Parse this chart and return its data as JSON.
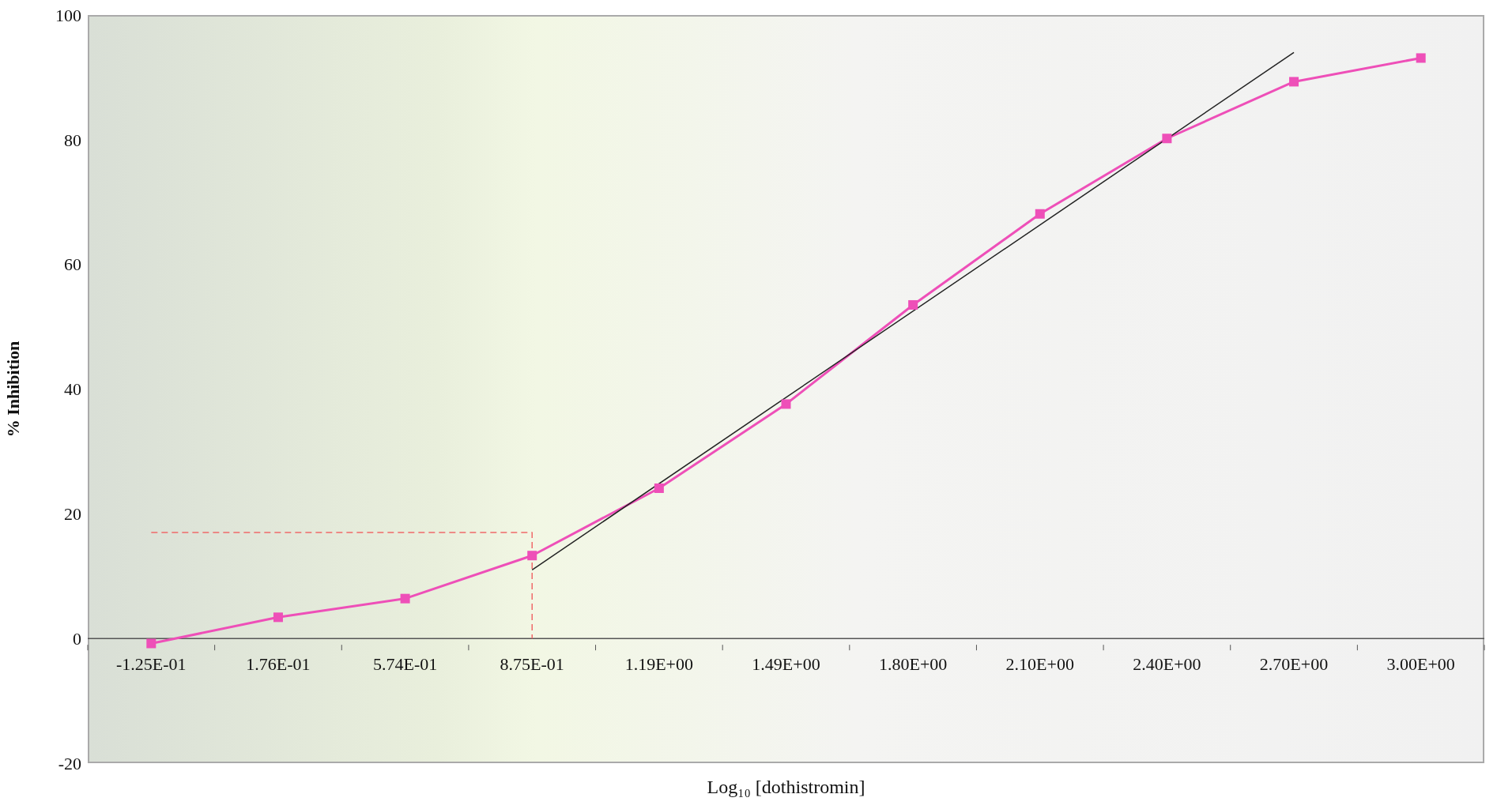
{
  "chart_data": {
    "type": "line",
    "xlabel": "Log₁₀ [dothistromin]",
    "ylabel": "% Inhibition",
    "categories": [
      "-1.25E-01",
      "1.76E-01",
      "5.74E-01",
      "8.75E-01",
      "1.19E+00",
      "1.49E+00",
      "1.80E+00",
      "2.10E+00",
      "2.40E+00",
      "2.70E+00",
      "3.00E+00"
    ],
    "series": [
      {
        "type": "line",
        "color": "#ee4fb8",
        "marker": "square",
        "values": [
          -0.8,
          3.4,
          6.4,
          13.3,
          24.1,
          37.6,
          53.5,
          68.1,
          80.2,
          89.3,
          93.1
        ]
      },
      {
        "type": "line",
        "color": "#222222",
        "marker": "none",
        "x": [
          "8.75E-01",
          "2.70E+00"
        ],
        "values": [
          11,
          94
        ]
      },
      {
        "type": "line",
        "color": "#f06a6a",
        "marker": "none",
        "line_style": "dashed",
        "x": [
          "-1.25E-01",
          "8.75E-01",
          "8.75E-01"
        ],
        "values": [
          17,
          17,
          0
        ]
      }
    ],
    "ylim": [
      -20,
      100
    ],
    "yticks": [
      -20,
      0,
      20,
      40,
      60,
      80,
      100
    ],
    "grid": false
  }
}
